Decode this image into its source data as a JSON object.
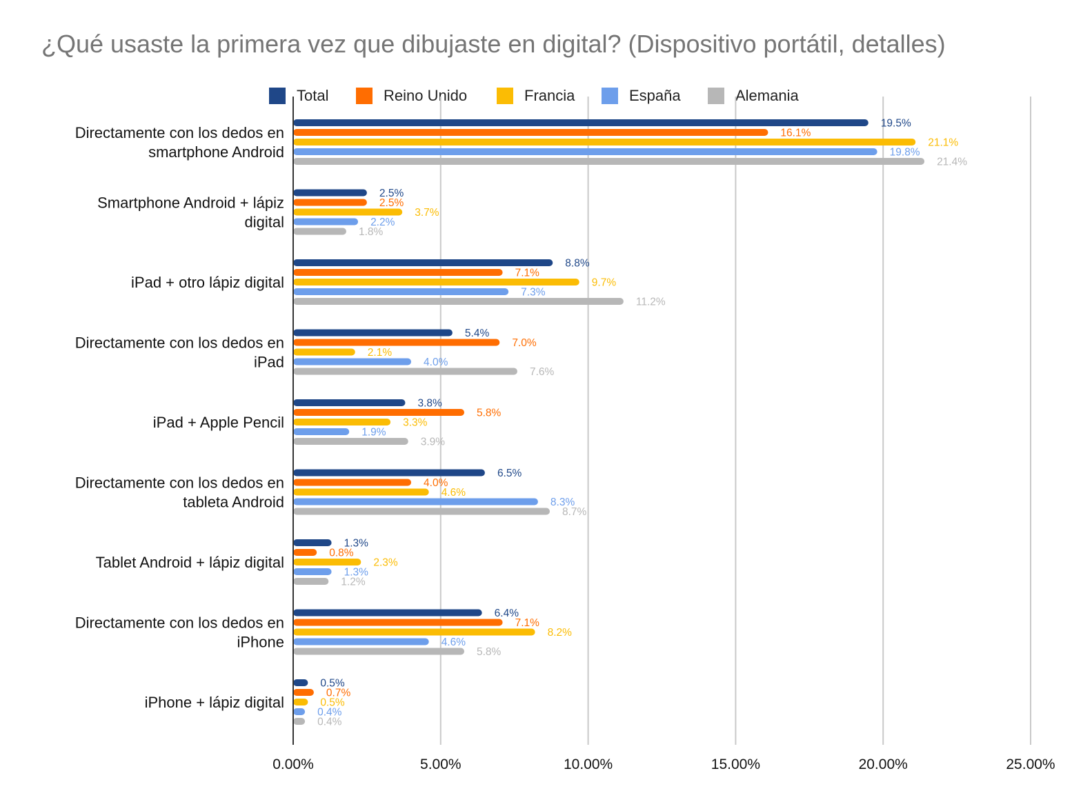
{
  "chart_data": {
    "type": "bar",
    "orientation": "horizontal",
    "title": "¿Qué usaste la primera vez que dibujaste en digital? (Dispositivo portátil, detalles)",
    "xlabel": "",
    "ylabel": "",
    "xlim": [
      0,
      25
    ],
    "x_ticks": [
      0,
      5,
      10,
      15,
      20,
      25
    ],
    "x_tick_labels": [
      "0.00%",
      "5.00%",
      "10.00%",
      "15.00%",
      "20.00%",
      "25.00%"
    ],
    "grid": true,
    "legend_position": "top",
    "categories": [
      [
        "Directamente con los dedos en",
        "smartphone Android"
      ],
      [
        "Smartphone Android + lápiz",
        "digital"
      ],
      [
        "iPad + otro lápiz digital"
      ],
      [
        "Directamente con los dedos en",
        "iPad"
      ],
      [
        "iPad + Apple Pencil"
      ],
      [
        "Directamente con los dedos en",
        "tableta Android"
      ],
      [
        "Tablet Android + lápiz digital"
      ],
      [
        "Directamente con los dedos en",
        "iPhone"
      ],
      [
        "iPhone + lápiz digital"
      ]
    ],
    "series": [
      {
        "name": "Total",
        "color": "#1f4788",
        "values": [
          19.5,
          2.5,
          8.8,
          5.4,
          3.8,
          6.5,
          1.3,
          6.4,
          0.5
        ],
        "labels": [
          "19.5%",
          "2.5%",
          "8.8%",
          "5.4%",
          "3.8%",
          "6.5%",
          "1.3%",
          "6.4%",
          "0.5%"
        ]
      },
      {
        "name": "Reino Unido",
        "color": "#ff6d01",
        "values": [
          16.1,
          2.5,
          7.1,
          7.0,
          5.8,
          4.0,
          0.8,
          7.1,
          0.7
        ],
        "labels": [
          "16.1%",
          "2.5%",
          "7.1%",
          "7.0%",
          "5.8%",
          "4.0%",
          "0.8%",
          "7.1%",
          "0.7%"
        ]
      },
      {
        "name": "Francia",
        "color": "#fbbc04",
        "values": [
          21.1,
          3.7,
          9.7,
          2.1,
          3.3,
          4.6,
          2.3,
          8.2,
          0.5
        ],
        "labels": [
          "21.1%",
          "3.7%",
          "9.7%",
          "2.1%",
          "3.3%",
          "4.6%",
          "2.3%",
          "8.2%",
          "0.5%"
        ]
      },
      {
        "name": "España",
        "color": "#6d9eeb",
        "values": [
          19.8,
          2.2,
          7.3,
          4.0,
          1.9,
          8.3,
          1.3,
          4.6,
          0.4
        ],
        "labels": [
          "19.8%",
          "2.2%",
          "7.3%",
          "4.0%",
          "1.9%",
          "8.3%",
          "1.3%",
          "4.6%",
          "0.4%"
        ]
      },
      {
        "name": "Alemania",
        "color": "#b7b7b7",
        "values": [
          21.4,
          1.8,
          11.2,
          7.6,
          3.9,
          8.7,
          1.2,
          5.8,
          0.4
        ],
        "labels": [
          "21.4%",
          "1.8%",
          "11.2%",
          "7.6%",
          "3.9%",
          "8.7%",
          "1.2%",
          "5.8%",
          "0.4%"
        ]
      }
    ]
  }
}
